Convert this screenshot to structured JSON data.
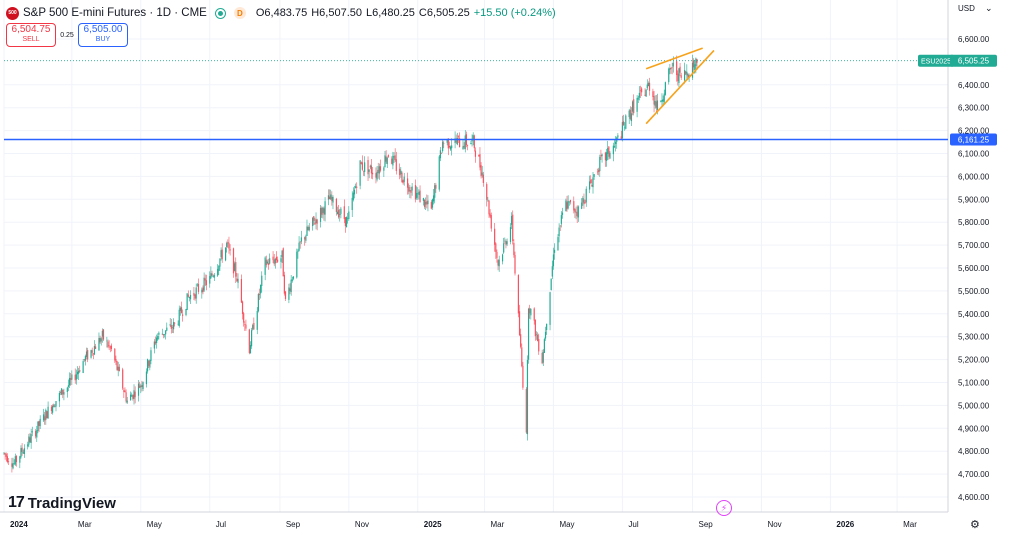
{
  "header": {
    "logo_text": "500",
    "symbol": "S&P 500 E-mini Futures · 1D · CME",
    "d_badge": "D",
    "ohlc_o": "O6,483.75",
    "ohlc_h": "H6,507.50",
    "ohlc_l": "L6,480.25",
    "ohlc_c": "C6,505.25",
    "ohlc_change": "+15.50 (+0.24%)"
  },
  "trade": {
    "sell_price": "6,504.75",
    "sell_label": "SELL",
    "spread": "0.25",
    "buy_price": "6,505.00",
    "buy_label": "BUY"
  },
  "currency": "USD",
  "branding": {
    "logo_mark": "17",
    "name": "TradingView"
  },
  "icons": {
    "currency_menu": "chevron-down-icon",
    "settings": "gear-icon",
    "flash": "lightning-icon",
    "logo": "tradingview-logo"
  },
  "colors": {
    "up": "#22ab94",
    "down": "#f7525f",
    "hline": "#2962ff",
    "wedge": "#f7a21b",
    "last_price": "#22ab94",
    "grid": "#f0f3fa"
  },
  "chart_data": {
    "type": "candlestick",
    "title": "",
    "xlabel": "",
    "ylabel": "",
    "ylim": [
      4560,
      6680
    ],
    "y_ticks": [
      "4,600.00",
      "4,700.00",
      "4,800.00",
      "4,900.00",
      "5,000.00",
      "5,100.00",
      "5,200.00",
      "5,300.00",
      "5,400.00",
      "5,500.00",
      "5,600.00",
      "5,700.00",
      "5,800.00",
      "5,900.00",
      "6,000.00",
      "6,100.00",
      "6,200.00",
      "6,300.00",
      "6,400.00",
      "6,600.00"
    ],
    "x_ticks": [
      {
        "label": "2024",
        "date": "2024-01-01"
      },
      {
        "label": "Mar",
        "date": "2024-03-01"
      },
      {
        "label": "May",
        "date": "2024-05-01"
      },
      {
        "label": "Jul",
        "date": "2024-07-01"
      },
      {
        "label": "Sep",
        "date": "2024-09-01"
      },
      {
        "label": "Nov",
        "date": "2024-11-01"
      },
      {
        "label": "2025",
        "date": "2025-01-01"
      },
      {
        "label": "Mar",
        "date": "2025-03-01"
      },
      {
        "label": "May",
        "date": "2025-05-01"
      },
      {
        "label": "Jul",
        "date": "2025-07-01"
      },
      {
        "label": "Sep",
        "date": "2025-09-01"
      },
      {
        "label": "Nov",
        "date": "2025-11-01"
      },
      {
        "label": "2026",
        "date": "2026-01-01"
      },
      {
        "label": "Mar",
        "date": "2026-03-01"
      }
    ],
    "x_range": [
      "2024-01-01",
      "2026-04-15"
    ],
    "price_path": [
      [
        "2024-01-01",
        4790
      ],
      [
        "2024-01-05",
        4770
      ],
      [
        "2024-01-10",
        4745
      ],
      [
        "2024-01-18",
        4810
      ],
      [
        "2024-01-29",
        4890
      ],
      [
        "2024-02-12",
        5000
      ],
      [
        "2024-02-29",
        5100
      ],
      [
        "2024-03-12",
        5200
      ],
      [
        "2024-03-28",
        5300
      ],
      [
        "2024-04-05",
        5240
      ],
      [
        "2024-04-19",
        5020
      ],
      [
        "2024-05-02",
        5100
      ],
      [
        "2024-05-15",
        5300
      ],
      [
        "2024-05-31",
        5350
      ],
      [
        "2024-06-12",
        5470
      ],
      [
        "2024-07-01",
        5550
      ],
      [
        "2024-07-16",
        5700
      ],
      [
        "2024-07-25",
        5560
      ],
      [
        "2024-08-05",
        5250
      ],
      [
        "2024-08-19",
        5620
      ],
      [
        "2024-09-03",
        5650
      ],
      [
        "2024-09-06",
        5450
      ],
      [
        "2024-09-20",
        5720
      ],
      [
        "2024-10-15",
        5900
      ],
      [
        "2024-10-31",
        5800
      ],
      [
        "2024-11-11",
        6050
      ],
      [
        "2024-11-25",
        6020
      ],
      [
        "2024-12-06",
        6100
      ],
      [
        "2024-12-18",
        6000
      ],
      [
        "2025-01-13",
        5850
      ],
      [
        "2025-01-23",
        6150
      ],
      [
        "2025-02-19",
        6150
      ],
      [
        "2025-02-28",
        6000
      ],
      [
        "2025-03-13",
        5620
      ],
      [
        "2025-03-25",
        5800
      ],
      [
        "2025-04-04",
        5100
      ],
      [
        "2025-04-07",
        4900
      ],
      [
        "2025-04-09",
        5450
      ],
      [
        "2025-04-21",
        5200
      ],
      [
        "2025-05-02",
        5700
      ],
      [
        "2025-05-12",
        5880
      ],
      [
        "2025-05-23",
        5850
      ],
      [
        "2025-06-10",
        6050
      ],
      [
        "2025-06-24",
        6130
      ],
      [
        "2025-07-10",
        6300
      ],
      [
        "2025-07-25",
        6400
      ],
      [
        "2025-08-01",
        6300
      ],
      [
        "2025-08-14",
        6480
      ],
      [
        "2025-08-22",
        6430
      ],
      [
        "2025-09-05",
        6505
      ]
    ],
    "horizontal_line": {
      "price": 6161.25,
      "label": "6,161.25"
    },
    "last_price": {
      "price": 6505.25,
      "label": "6,505.25",
      "symbol_tag": "ESU2025"
    },
    "rising_wedge": {
      "upper": [
        [
          "2025-07-22",
          6470
        ],
        [
          "2025-09-10",
          6560
        ]
      ],
      "lower": [
        [
          "2025-07-22",
          6230
        ],
        [
          "2025-09-20",
          6550
        ]
      ]
    },
    "grid": true
  }
}
